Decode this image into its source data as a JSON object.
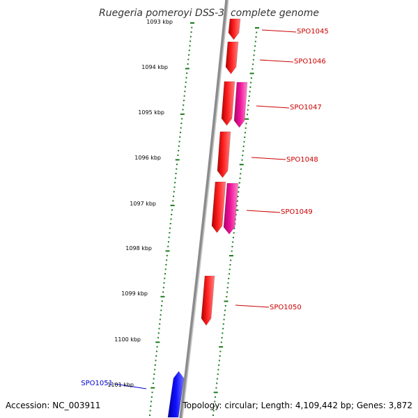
{
  "title": "Ruegeria pomeroyi DSS-3, complete genome",
  "accession": "Accession: NC_003911",
  "summary": "Topology: circular; Length: 4,109,442 bp; Genes: 3,872",
  "colors": {
    "backbone": "#8c8c8c",
    "ticks": "#1a7a1a",
    "forward_gene": "#ee0000",
    "forward_gene_alt": "#ee1199",
    "reverse_gene": "#0000dd",
    "forward_label": "#cc0000",
    "reverse_label": "#0000cc"
  },
  "kbp_labels": [
    "1093 kbp",
    "1094 kbp",
    "1095 kbp",
    "1096 kbp",
    "1097 kbp",
    "1098 kbp",
    "1099 kbp",
    "1100 kbp",
    "1101 kbp"
  ],
  "genes": [
    {
      "name": "SPO1045",
      "strand": "forward"
    },
    {
      "name": "SPO1046",
      "strand": "forward"
    },
    {
      "name": "SPO1047",
      "strand": "forward"
    },
    {
      "name": "SPO1048",
      "strand": "forward"
    },
    {
      "name": "SPO1049",
      "strand": "forward"
    },
    {
      "name": "SPO1050",
      "strand": "forward"
    },
    {
      "name": "SPO1051",
      "strand": "reverse"
    }
  ]
}
